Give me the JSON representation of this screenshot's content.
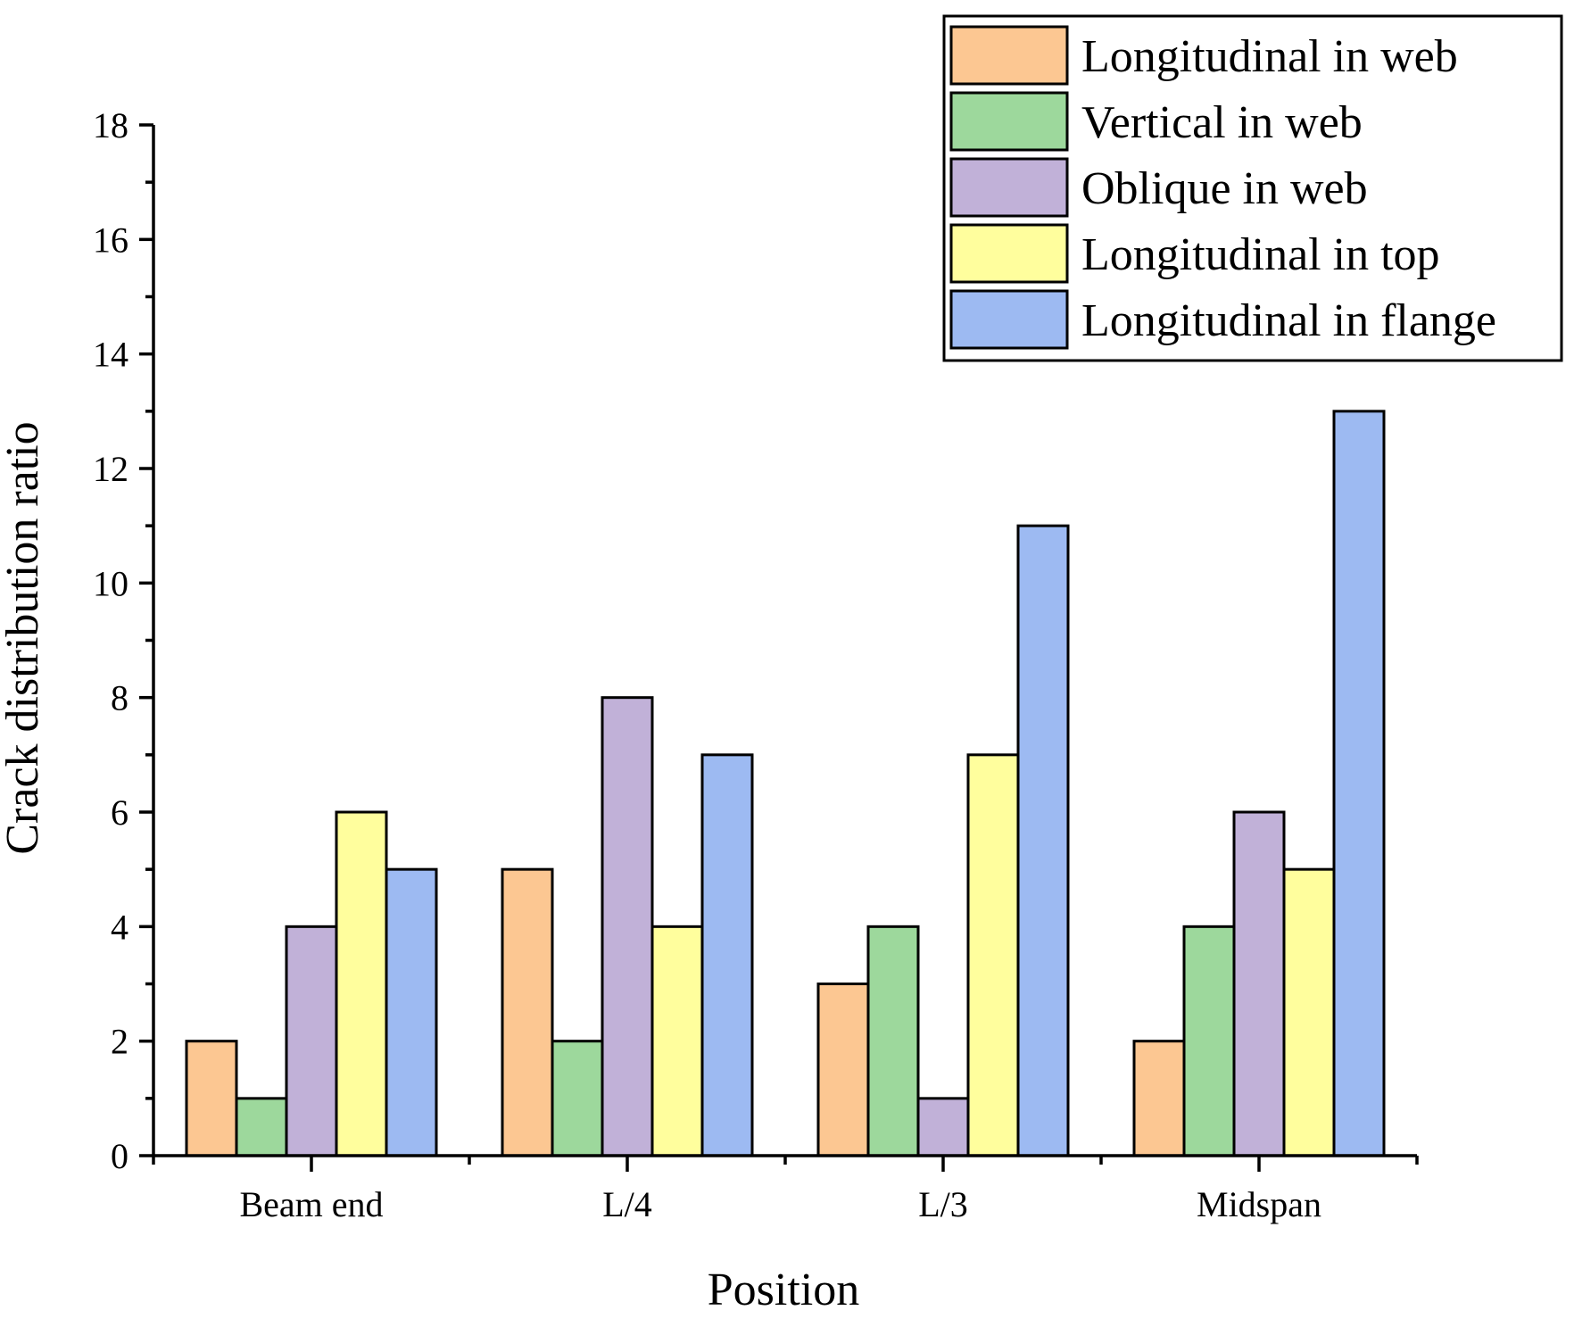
{
  "chart_data": {
    "type": "bar",
    "title": "",
    "xlabel": "Position",
    "ylabel": "Crack distribution ratio",
    "categories": [
      "Beam end",
      "L/4",
      "L/3",
      "Midspan"
    ],
    "ylim": [
      0,
      18
    ],
    "yticks": [
      0,
      2,
      4,
      6,
      8,
      10,
      12,
      14,
      16,
      18
    ],
    "grid": false,
    "legend_position": "top-right",
    "series": [
      {
        "name": "Longitudinal in web",
        "color": "#FCC792",
        "values": [
          2,
          5,
          3,
          2
        ]
      },
      {
        "name": "Vertical in web",
        "color": "#9DD89C",
        "values": [
          1,
          2,
          4,
          4
        ]
      },
      {
        "name": "Oblique in web",
        "color": "#C1B1D8",
        "values": [
          4,
          8,
          1,
          6
        ]
      },
      {
        "name": "Longitudinal in top",
        "color": "#FFFE9D",
        "values": [
          6,
          4,
          7,
          5
        ]
      },
      {
        "name": "Longitudinal in flange",
        "color": "#9DBAF2",
        "values": [
          5,
          7,
          11,
          13
        ]
      }
    ]
  }
}
